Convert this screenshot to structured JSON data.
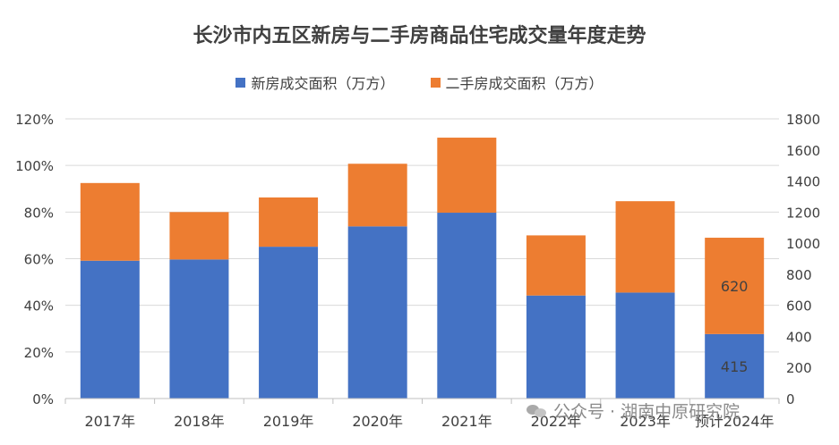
{
  "chart_data": {
    "type": "bar",
    "stacked": true,
    "title": "长沙市内五区新房与二手房商品住宅成交量年度走势",
    "categories": [
      "2017年",
      "2018年",
      "2019年",
      "2020年",
      "2021年",
      "2022年",
      "2023年",
      "预计2024年"
    ],
    "series": [
      {
        "name": "新房成交面积（万方）",
        "color": "#4472C4",
        "values": [
          887,
          895,
          977,
          1108,
          1196,
          663,
          682,
          415
        ]
      },
      {
        "name": "二手房成交面积（万方）",
        "color": "#ED7D31",
        "values": [
          500,
          305,
          317,
          403,
          483,
          387,
          588,
          620
        ]
      }
    ],
    "data_labels": [
      {
        "series": 0,
        "index": 7,
        "text": "415"
      },
      {
        "series": 1,
        "index": 7,
        "text": "620"
      }
    ],
    "y_left": {
      "ticks": [
        "0%",
        "20%",
        "40%",
        "60%",
        "80%",
        "100%",
        "120%"
      ],
      "range": [
        0,
        1.2
      ]
    },
    "y_right": {
      "ticks": [
        "0",
        "200",
        "400",
        "600",
        "800",
        "1000",
        "1200",
        "1400",
        "1600",
        "1800"
      ],
      "range": [
        0,
        1800
      ]
    },
    "grid": true,
    "legend_position": "top"
  },
  "watermark": "公众号 · 湖南中原研究院"
}
